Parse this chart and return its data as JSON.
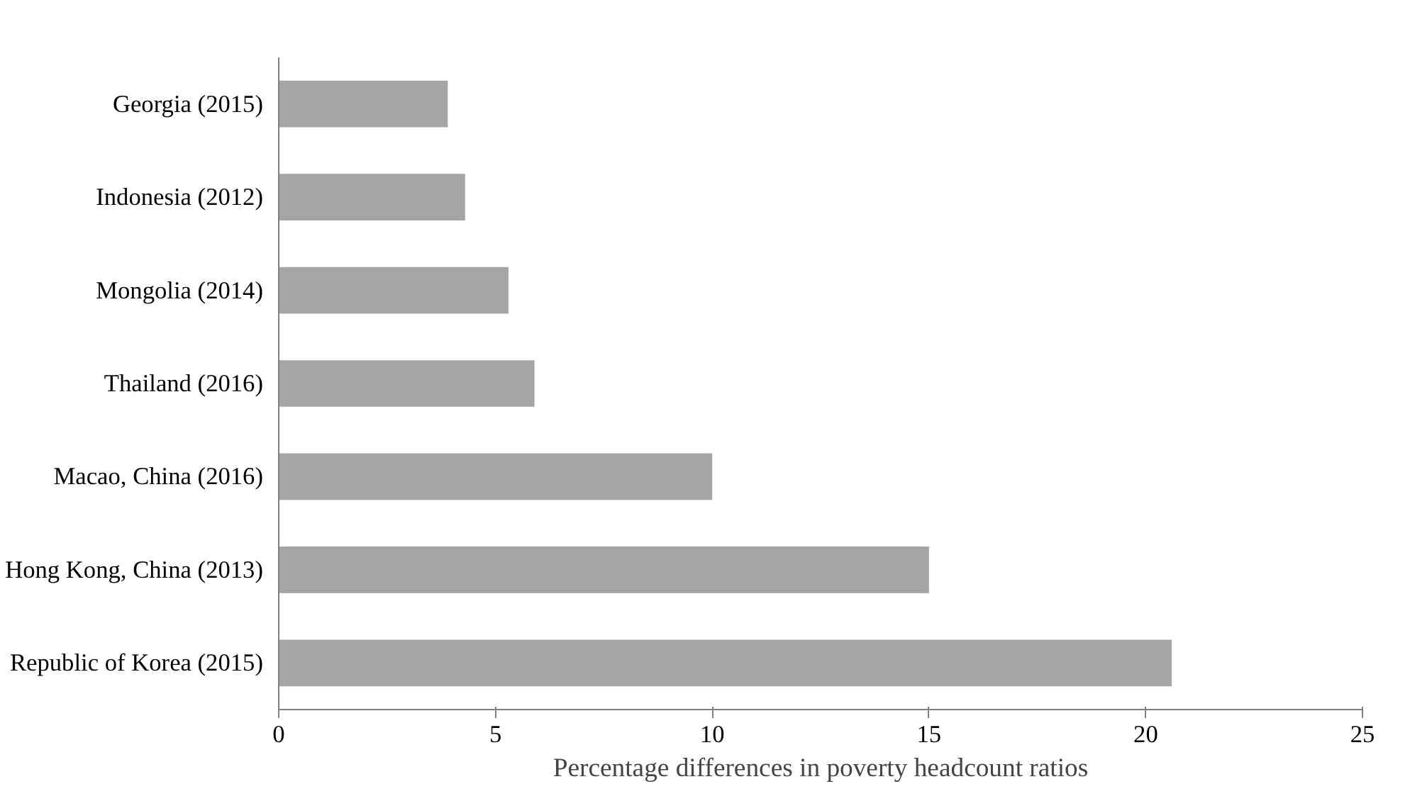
{
  "chart_data": {
    "type": "bar",
    "orientation": "horizontal",
    "xlabel": "Percentage differences in poverty headcount ratios",
    "categories": [
      "Georgia (2015)",
      "Indonesia (2012)",
      "Mongolia (2014)",
      "Thailand (2016)",
      "Macao, China (2016)",
      "Hong Kong, China (2013)",
      "Republic of Korea (2015)"
    ],
    "values": [
      3.9,
      4.3,
      5.3,
      5.9,
      10,
      15,
      20.6
    ],
    "color": "#a5a5a5",
    "xlim": [
      0,
      25
    ],
    "xticks": [
      0,
      5,
      10,
      15,
      20,
      25
    ],
    "grid": false
  }
}
